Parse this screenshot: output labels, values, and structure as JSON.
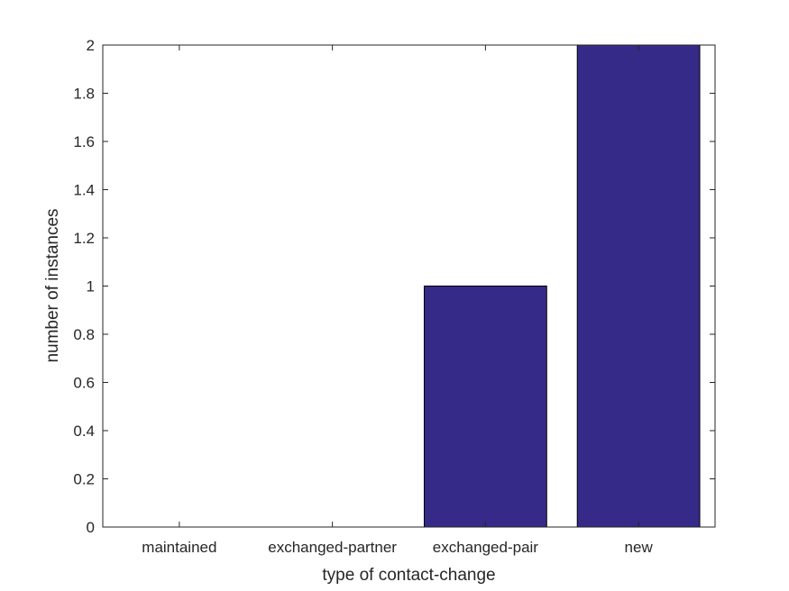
{
  "chart_data": {
    "type": "bar",
    "categories": [
      "maintained",
      "exchanged-partner",
      "exchanged-pair",
      "new"
    ],
    "values": [
      0,
      0,
      1,
      2
    ],
    "title": "",
    "xlabel": "type of contact-change",
    "ylabel": "number of instances",
    "ylim": [
      0,
      2
    ],
    "yticks": [
      "0",
      "0.2",
      "0.4",
      "0.6",
      "0.8",
      "1",
      "1.2",
      "1.4",
      "1.6",
      "1.8",
      "2"
    ],
    "grid": false,
    "bar_color": "#352A87"
  }
}
